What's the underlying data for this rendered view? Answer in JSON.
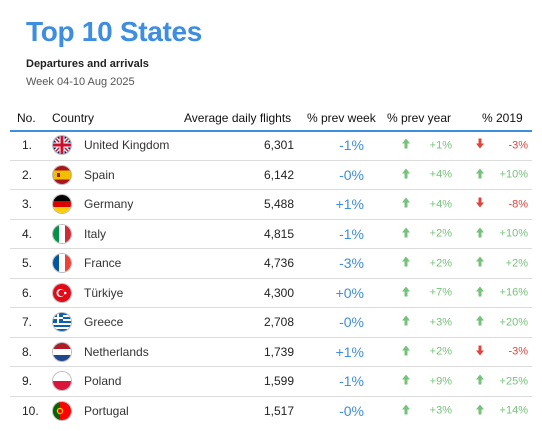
{
  "header": {
    "title": "Top 10 States",
    "subtitle": "Departures and arrivals",
    "period": "Week 04-10 Aug 2025"
  },
  "columns": {
    "no": "No.",
    "country": "Country",
    "avg": "Average daily flights",
    "prev_week": "% prev week",
    "prev_year": "% prev year",
    "y2019": "% 2019"
  },
  "colors": {
    "accent": "#3d8de0",
    "up": "#75c27a",
    "down": "#e0443c"
  },
  "rows": [
    {
      "no": "1.",
      "country": "United Kingdom",
      "flag": "uk-flag-icon",
      "avg": "6,301",
      "prev_week": "-1%",
      "prev_year": "+1%",
      "prev_year_dir": "up",
      "y2019": "-3%",
      "y2019_dir": "down"
    },
    {
      "no": "2.",
      "country": "Spain",
      "flag": "spain-flag-icon",
      "avg": "6,142",
      "prev_week": "-0%",
      "prev_year": "+4%",
      "prev_year_dir": "up",
      "y2019": "+10%",
      "y2019_dir": "up"
    },
    {
      "no": "3.",
      "country": "Germany",
      "flag": "germany-flag-icon",
      "avg": "5,488",
      "prev_week": "+1%",
      "prev_year": "+4%",
      "prev_year_dir": "up",
      "y2019": "-8%",
      "y2019_dir": "down"
    },
    {
      "no": "4.",
      "country": "Italy",
      "flag": "italy-flag-icon",
      "avg": "4,815",
      "prev_week": "-1%",
      "prev_year": "+2%",
      "prev_year_dir": "up",
      "y2019": "+10%",
      "y2019_dir": "up"
    },
    {
      "no": "5.",
      "country": "France",
      "flag": "france-flag-icon",
      "avg": "4,736",
      "prev_week": "-3%",
      "prev_year": "+2%",
      "prev_year_dir": "up",
      "y2019": "+2%",
      "y2019_dir": "up"
    },
    {
      "no": "6.",
      "country": "Türkiye",
      "flag": "turkiye-flag-icon",
      "avg": "4,300",
      "prev_week": "+0%",
      "prev_year": "+7%",
      "prev_year_dir": "up",
      "y2019": "+16%",
      "y2019_dir": "up"
    },
    {
      "no": "7.",
      "country": "Greece",
      "flag": "greece-flag-icon",
      "avg": "2,708",
      "prev_week": "-0%",
      "prev_year": "+3%",
      "prev_year_dir": "up",
      "y2019": "+20%",
      "y2019_dir": "up"
    },
    {
      "no": "8.",
      "country": "Netherlands",
      "flag": "netherlands-flag-icon",
      "avg": "1,739",
      "prev_week": "+1%",
      "prev_year": "+2%",
      "prev_year_dir": "up",
      "y2019": "-3%",
      "y2019_dir": "down"
    },
    {
      "no": "9.",
      "country": "Poland",
      "flag": "poland-flag-icon",
      "avg": "1,599",
      "prev_week": "-1%",
      "prev_year": "+9%",
      "prev_year_dir": "up",
      "y2019": "+25%",
      "y2019_dir": "up"
    },
    {
      "no": "10.",
      "country": "Portugal",
      "flag": "portugal-flag-icon",
      "avg": "1,517",
      "prev_week": "-0%",
      "prev_year": "+3%",
      "prev_year_dir": "up",
      "y2019": "+14%",
      "y2019_dir": "up"
    }
  ]
}
